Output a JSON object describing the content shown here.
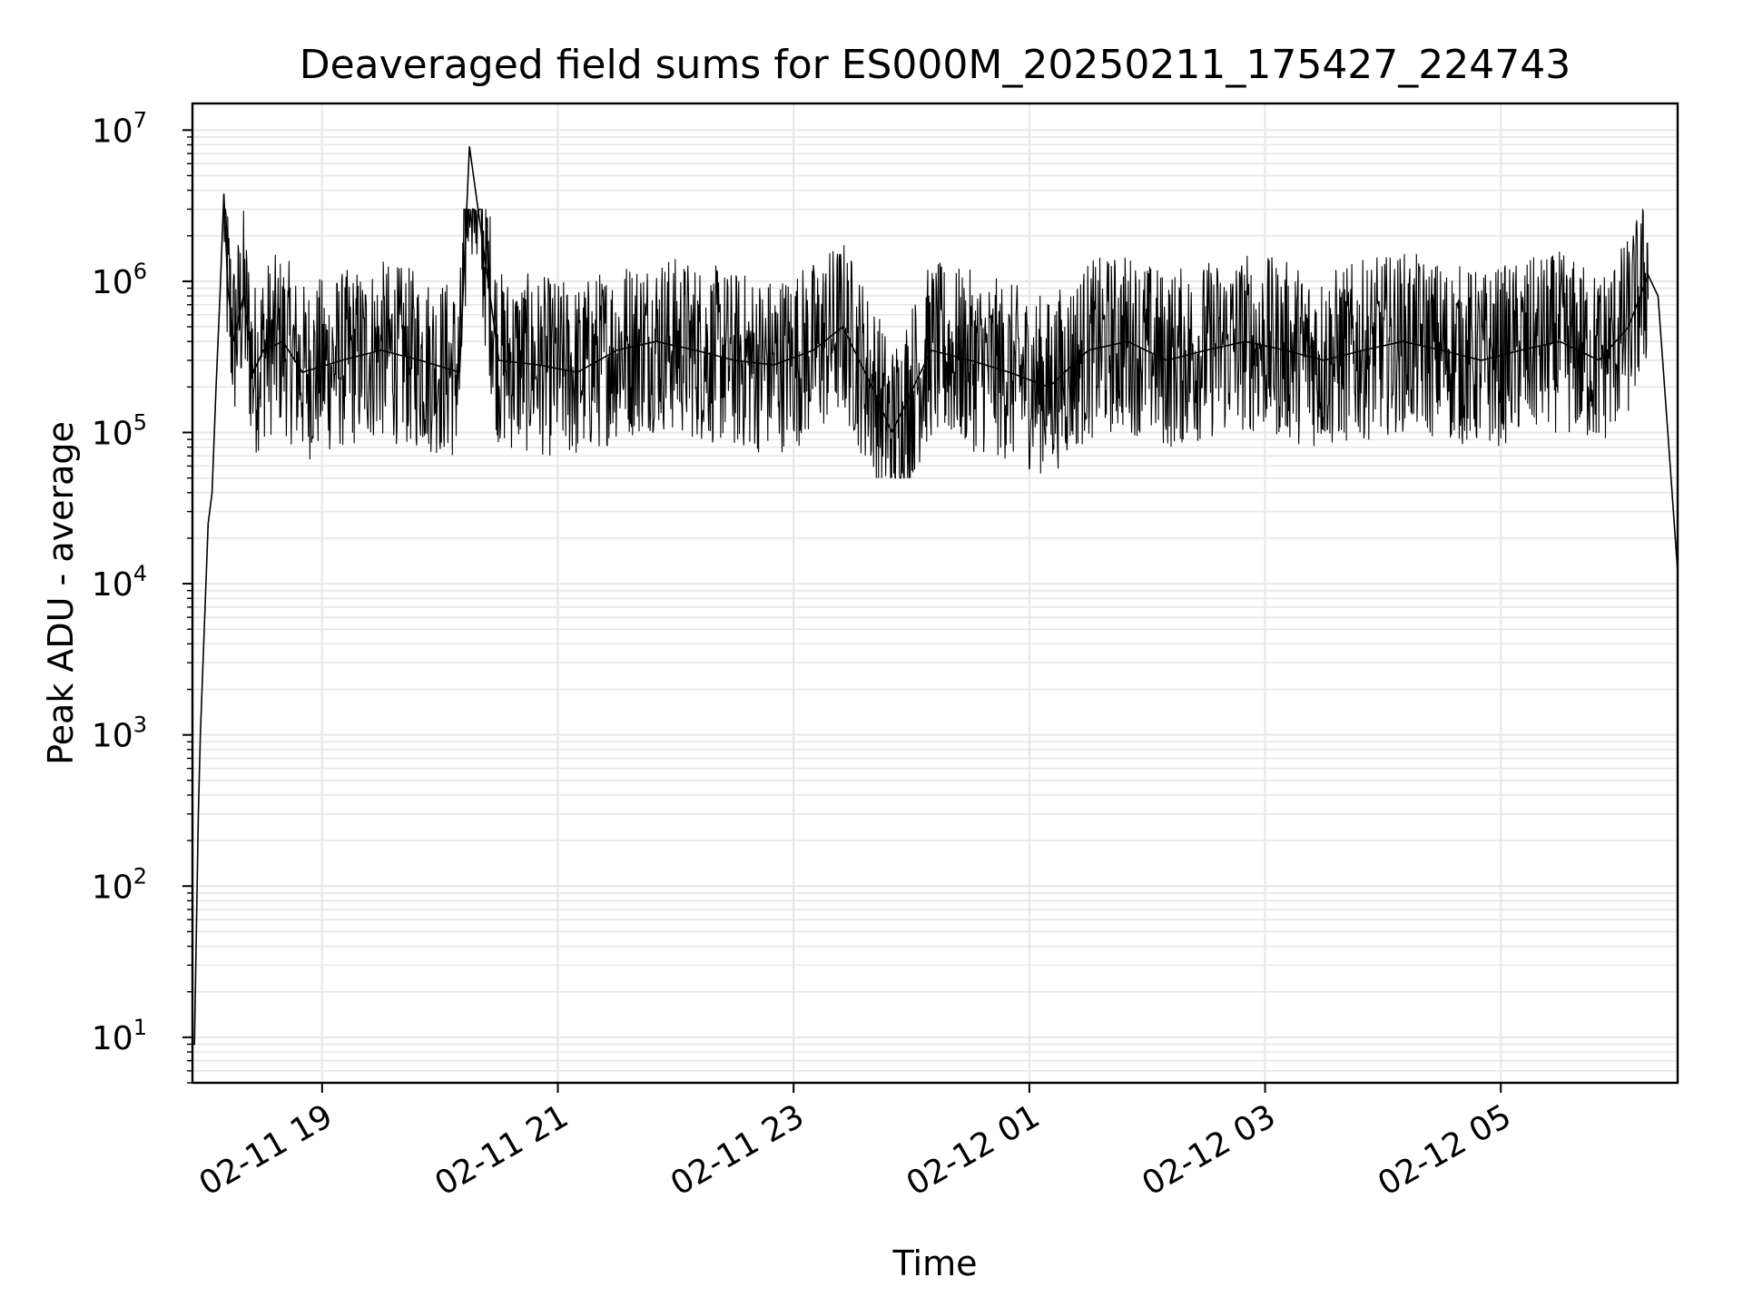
{
  "chart_data": {
    "type": "line",
    "title": "Deaveraged field sums for ES000M_20250211_175427_224743",
    "xlabel": "Time",
    "ylabel": "Peak ADU - average",
    "yscale": "log",
    "xlim": [
      "2025-02-11 17:54",
      "2025-02-12 06:30"
    ],
    "ylim": [
      5,
      15000000
    ],
    "grid": true,
    "grid_color": "#e6e6e6",
    "line_color": "#000000",
    "x_ticks": [
      {
        "value": "2025-02-11 19:00",
        "label": "02-11 19"
      },
      {
        "value": "2025-02-11 21:00",
        "label": "02-11 21"
      },
      {
        "value": "2025-02-11 23:00",
        "label": "02-11 23"
      },
      {
        "value": "2025-02-12 01:00",
        "label": "02-12 01"
      },
      {
        "value": "2025-02-12 03:00",
        "label": "02-12 03"
      },
      {
        "value": "2025-02-12 05:00",
        "label": "02-12 05"
      }
    ],
    "y_ticks": [
      {
        "value": 10,
        "base": "10",
        "exp": "1"
      },
      {
        "value": 100,
        "base": "10",
        "exp": "2"
      },
      {
        "value": 1000,
        "base": "10",
        "exp": "3"
      },
      {
        "value": 10000,
        "base": "10",
        "exp": "4"
      },
      {
        "value": 100000,
        "base": "10",
        "exp": "5"
      },
      {
        "value": 1000000,
        "base": "10",
        "exp": "6"
      },
      {
        "value": 10000000,
        "base": "10",
        "exp": "7"
      }
    ],
    "series": [
      {
        "x": [
          "2025-02-11 17:54",
          "2025-02-11 17:55",
          "2025-02-11 17:57",
          "2025-02-11 17:58",
          "2025-02-11 18:00",
          "2025-02-11 18:02",
          "2025-02-11 18:04",
          "2025-02-11 18:06",
          "2025-02-11 18:08",
          "2025-02-11 18:10",
          "2025-02-11 18:12",
          "2025-02-11 18:15",
          "2025-02-11 18:20",
          "2025-02-11 18:25",
          "2025-02-11 18:30",
          "2025-02-11 18:40",
          "2025-02-11 18:50",
          "2025-02-11 19:10",
          "2025-02-11 19:30",
          "2025-02-11 19:50",
          "2025-02-11 20:10",
          "2025-02-11 20:15",
          "2025-02-11 20:30",
          "2025-02-11 20:50",
          "2025-02-11 21:10",
          "2025-02-11 21:30",
          "2025-02-11 21:50",
          "2025-02-11 22:10",
          "2025-02-11 22:30",
          "2025-02-11 22:50",
          "2025-02-11 23:10",
          "2025-02-11 23:25",
          "2025-02-11 23:40",
          "2025-02-11 23:50",
          "2025-02-12 00:10",
          "2025-02-12 00:30",
          "2025-02-12 00:50",
          "2025-02-12 01:10",
          "2025-02-12 01:30",
          "2025-02-12 01:50",
          "2025-02-12 02:10",
          "2025-02-12 02:30",
          "2025-02-12 02:50",
          "2025-02-12 03:10",
          "2025-02-12 03:30",
          "2025-02-12 03:50",
          "2025-02-12 04:10",
          "2025-02-12 04:30",
          "2025-02-12 04:50",
          "2025-02-12 05:10",
          "2025-02-12 05:30",
          "2025-02-12 05:50",
          "2025-02-12 06:05",
          "2025-02-12 06:15",
          "2025-02-12 06:20",
          "2025-02-12 06:25",
          "2025-02-12 06:30"
        ],
        "y": [
          9,
          9,
          300,
          1000,
          5000,
          25000,
          40000,
          200000,
          800000,
          3800000,
          900000,
          400000,
          800000,
          250000,
          350000,
          400000,
          250000,
          300000,
          350000,
          300000,
          250000,
          7800000,
          300000,
          280000,
          250000,
          350000,
          400000,
          350000,
          300000,
          280000,
          350000,
          500000,
          200000,
          100000,
          350000,
          300000,
          250000,
          200000,
          350000,
          400000,
          300000,
          350000,
          400000,
          350000,
          300000,
          350000,
          400000,
          350000,
          300000,
          350000,
          400000,
          300000,
          500000,
          1100000,
          800000,
          100000,
          12000
        ]
      }
    ]
  }
}
